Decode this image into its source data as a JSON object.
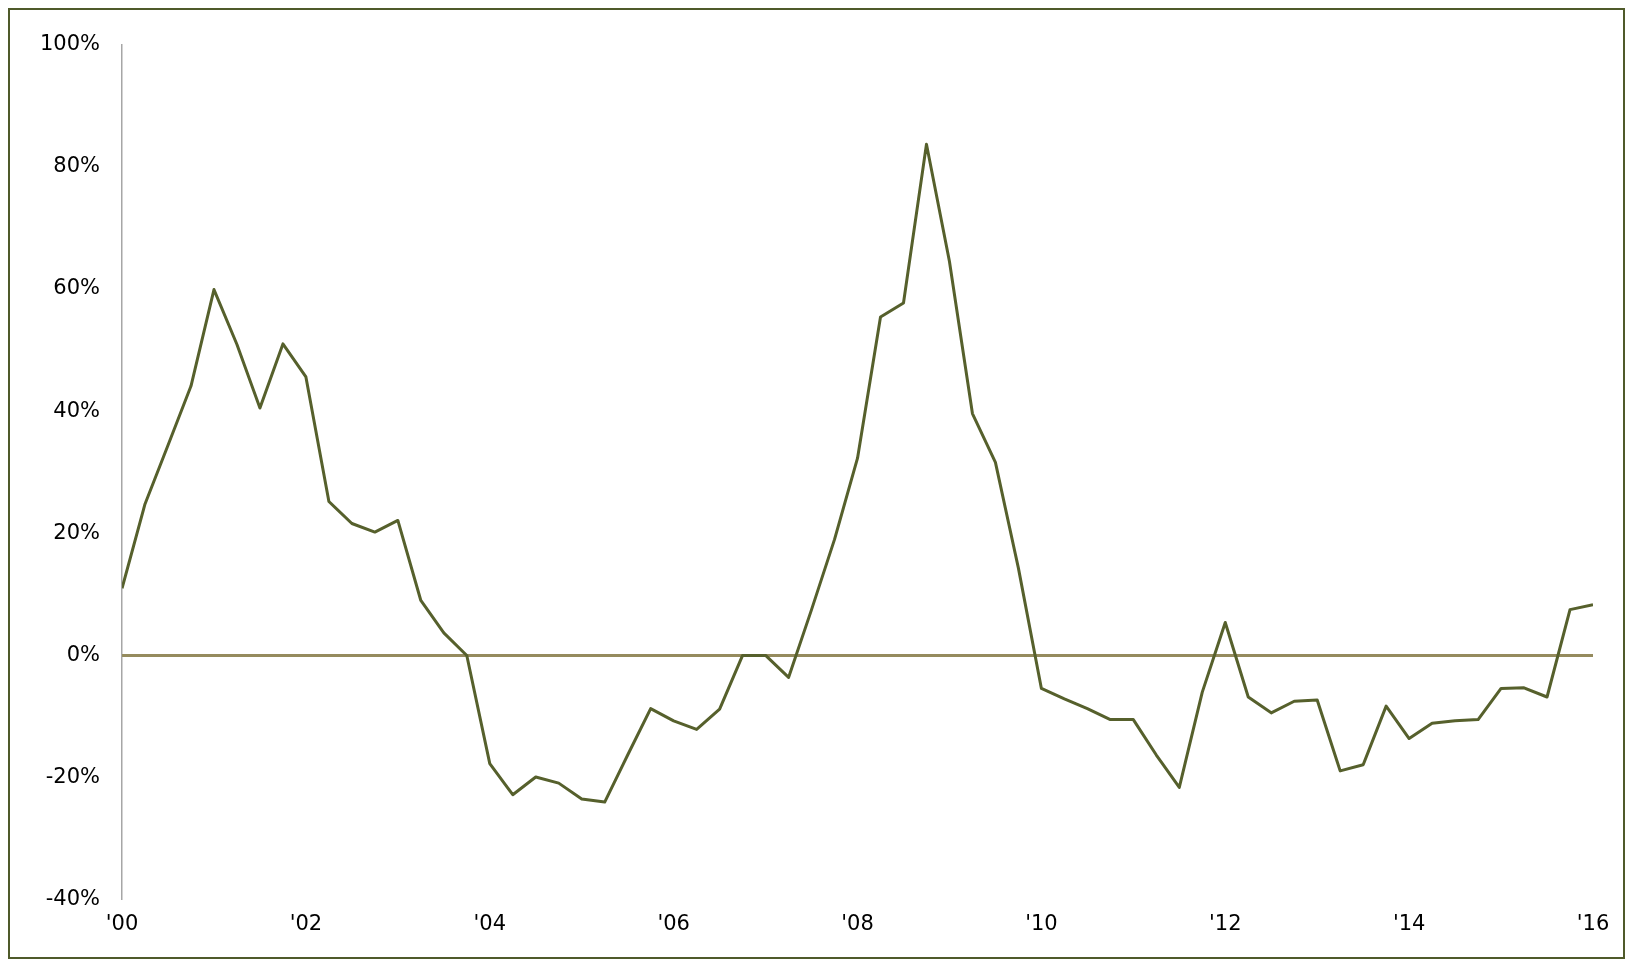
{
  "chart_data": {
    "type": "line",
    "x": [
      2000,
      2000.25,
      2000.5,
      2000.75,
      2001,
      2001.25,
      2001.5,
      2001.75,
      2002,
      2002.25,
      2002.5,
      2002.75,
      2003,
      2003.25,
      2003.5,
      2003.75,
      2004,
      2004.25,
      2004.5,
      2004.75,
      2005,
      2005.25,
      2005.5,
      2005.75,
      2006,
      2006.25,
      2006.5,
      2006.75,
      2007,
      2007.25,
      2007.5,
      2007.75,
      2008,
      2008.25,
      2008.5,
      2008.75,
      2009,
      2009.25,
      2009.5,
      2009.75,
      2010,
      2010.25,
      2010.5,
      2010.75,
      2011,
      2011.25,
      2011.5,
      2011.75,
      2012,
      2012.25,
      2012.5,
      2012.75,
      2013,
      2013.25,
      2013.5,
      2013.75,
      2014,
      2014.25,
      2014.5,
      2014.75,
      2015,
      2015.25,
      2015.5,
      2015.75,
      2016
    ],
    "series": [
      {
        "color": "#56602c",
        "values": [
          11,
          24.8,
          34.4,
          44.1,
          59.9,
          50.9,
          40.5,
          51,
          45.6,
          25.2,
          21.6,
          20.2,
          22.1,
          9,
          3.7,
          0,
          -17.7,
          -22.8,
          -19.9,
          -20.9,
          -23.5,
          -24,
          -16.3,
          -8.7,
          -10.7,
          -12.1,
          -8.8,
          0,
          0,
          -3.6,
          7.5,
          19,
          32.3,
          55.4,
          57.7,
          83.7,
          64.5,
          39.6,
          31.6,
          14.3,
          -5.4,
          -7.1,
          -8.7,
          -10.5,
          -10.5,
          -16.3,
          -21.6,
          -6,
          5.4,
          -6.8,
          -9.4,
          -7.5,
          -7.3,
          -18.9,
          -17.9,
          -8.3,
          -13.6,
          -11.1,
          -10.7,
          -10.5,
          -5.4,
          -5.3,
          -6.8,
          7.5,
          8.3
        ]
      }
    ],
    "xlim": [
      2000,
      2016
    ],
    "xticks": [
      {
        "value": 2000,
        "label": "'00"
      },
      {
        "value": 2002,
        "label": "'02"
      },
      {
        "value": 2004,
        "label": "'04"
      },
      {
        "value": 2006,
        "label": "'06"
      },
      {
        "value": 2008,
        "label": "'08"
      },
      {
        "value": 2010,
        "label": "'10"
      },
      {
        "value": 2012,
        "label": "'12"
      },
      {
        "value": 2014,
        "label": "'14"
      },
      {
        "value": 2016,
        "label": "'16"
      }
    ],
    "ylim": [
      -40,
      100
    ],
    "yticks": [
      {
        "value": -40,
        "label": "-40%"
      },
      {
        "value": -20,
        "label": "-20%"
      },
      {
        "value": 0,
        "label": "0%"
      },
      {
        "value": 20,
        "label": "20%"
      },
      {
        "value": 40,
        "label": "40%"
      },
      {
        "value": 60,
        "label": "60%"
      },
      {
        "value": 80,
        "label": "80%"
      },
      {
        "value": 100,
        "label": "100%"
      }
    ],
    "ref_lines": [
      {
        "axis": "y",
        "value": 0,
        "color": "#958b5e"
      }
    ],
    "grid": false,
    "legend": false,
    "marker": "none",
    "line_style": "solid"
  }
}
